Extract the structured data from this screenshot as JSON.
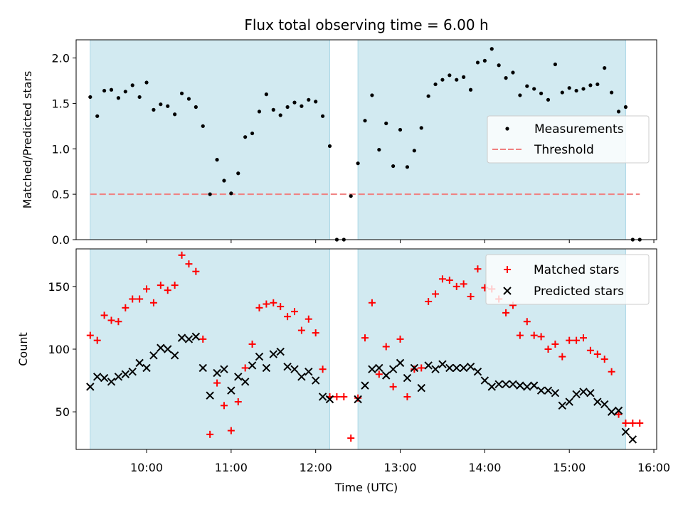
{
  "chart_data": [
    {
      "type": "scatter",
      "title": "Flux total observing time = 6.00 h",
      "ylabel": "Matched/Predicted stars",
      "ylim": [
        0,
        2.2
      ],
      "yticks": [
        0.0,
        0.5,
        1.0,
        1.5,
        2.0
      ],
      "ytick_labels": [
        "0.0",
        "0.5",
        "1.0",
        "1.5",
        "2.0"
      ],
      "legend": {
        "placement": "center-right",
        "entries": [
          "Measurements",
          "Threshold"
        ]
      },
      "shaded_ranges": [
        [
          "09:20",
          "12:10"
        ],
        [
          "12:30",
          "15:40"
        ]
      ],
      "threshold": {
        "name": "Threshold",
        "value": 0.5,
        "x_start": "09:20",
        "x_end": "15:50",
        "color": "#f08080"
      },
      "series": [
        {
          "name": "Measurements",
          "color": "#000000",
          "points": [
            [
              "09:20",
              1.57
            ],
            [
              "09:25",
              1.36
            ],
            [
              "09:30",
              1.64
            ],
            [
              "09:35",
              1.65
            ],
            [
              "09:40",
              1.56
            ],
            [
              "09:45",
              1.63
            ],
            [
              "09:50",
              1.7
            ],
            [
              "09:55",
              1.57
            ],
            [
              "10:00",
              1.73
            ],
            [
              "10:05",
              1.43
            ],
            [
              "10:10",
              1.49
            ],
            [
              "10:15",
              1.47
            ],
            [
              "10:20",
              1.38
            ],
            [
              "10:25",
              1.61
            ],
            [
              "10:30",
              1.55
            ],
            [
              "10:35",
              1.46
            ],
            [
              "10:40",
              1.25
            ],
            [
              "10:45",
              0.5
            ],
            [
              "10:50",
              0.88
            ],
            [
              "10:55",
              0.65
            ],
            [
              "11:00",
              0.51
            ],
            [
              "11:05",
              0.73
            ],
            [
              "11:10",
              1.13
            ],
            [
              "11:15",
              1.17
            ],
            [
              "11:20",
              1.41
            ],
            [
              "11:25",
              1.6
            ],
            [
              "11:30",
              1.43
            ],
            [
              "11:35",
              1.37
            ],
            [
              "11:40",
              1.46
            ],
            [
              "11:45",
              1.51
            ],
            [
              "11:50",
              1.47
            ],
            [
              "11:55",
              1.54
            ],
            [
              "12:00",
              1.52
            ],
            [
              "12:05",
              1.36
            ],
            [
              "12:10",
              1.03
            ],
            [
              "12:15",
              0.0
            ],
            [
              "12:20",
              0.0
            ],
            [
              "12:25",
              0.48
            ],
            [
              "12:30",
              0.84
            ],
            [
              "12:35",
              1.31
            ],
            [
              "12:40",
              1.59
            ],
            [
              "12:45",
              0.99
            ],
            [
              "12:50",
              1.28
            ],
            [
              "12:55",
              0.81
            ],
            [
              "13:00",
              1.21
            ],
            [
              "13:05",
              0.8
            ],
            [
              "13:10",
              0.98
            ],
            [
              "13:15",
              1.23
            ],
            [
              "13:20",
              1.58
            ],
            [
              "13:25",
              1.71
            ],
            [
              "13:30",
              1.76
            ],
            [
              "13:35",
              1.81
            ],
            [
              "13:40",
              1.76
            ],
            [
              "13:45",
              1.79
            ],
            [
              "13:50",
              1.65
            ],
            [
              "13:55",
              1.95
            ],
            [
              "14:00",
              1.97
            ],
            [
              "14:05",
              2.1
            ],
            [
              "14:10",
              1.92
            ],
            [
              "14:15",
              1.78
            ],
            [
              "14:20",
              1.84
            ],
            [
              "14:25",
              1.59
            ],
            [
              "14:30",
              1.69
            ],
            [
              "14:35",
              1.66
            ],
            [
              "14:40",
              1.61
            ],
            [
              "14:45",
              1.54
            ],
            [
              "14:50",
              1.93
            ],
            [
              "14:55",
              1.62
            ],
            [
              "15:00",
              1.67
            ],
            [
              "15:05",
              1.64
            ],
            [
              "15:10",
              1.66
            ],
            [
              "15:15",
              1.7
            ],
            [
              "15:20",
              1.71
            ],
            [
              "15:25",
              1.89
            ],
            [
              "15:30",
              1.62
            ],
            [
              "15:35",
              1.41
            ],
            [
              "15:40",
              1.46
            ],
            [
              "15:45",
              0.0
            ],
            [
              "15:50",
              0.0
            ]
          ]
        }
      ]
    },
    {
      "type": "scatter",
      "xlabel": "Time (UTC)",
      "ylabel": "Count",
      "xlim": [
        "09:10",
        "16:02"
      ],
      "xticks": [
        "10:00",
        "11:00",
        "12:00",
        "13:00",
        "14:00",
        "15:00",
        "16:00"
      ],
      "ylim": [
        20,
        180
      ],
      "yticks": [
        50,
        100,
        150
      ],
      "ytick_labels": [
        "50",
        "100",
        "150"
      ],
      "legend": {
        "placement": "top-right",
        "entries": [
          "Matched stars",
          "Predicted stars"
        ]
      },
      "shaded_ranges": [
        [
          "09:20",
          "12:10"
        ],
        [
          "12:30",
          "15:40"
        ]
      ],
      "series": [
        {
          "name": "Matched stars",
          "marker": "+",
          "color": "#ff0000",
          "points": [
            [
              "09:20",
              111
            ],
            [
              "09:25",
              107
            ],
            [
              "09:30",
              127
            ],
            [
              "09:35",
              123
            ],
            [
              "09:40",
              122
            ],
            [
              "09:45",
              133
            ],
            [
              "09:50",
              140
            ],
            [
              "09:55",
              140
            ],
            [
              "10:00",
              148
            ],
            [
              "10:05",
              137
            ],
            [
              "10:10",
              151
            ],
            [
              "10:15",
              147
            ],
            [
              "10:20",
              151
            ],
            [
              "10:25",
              175
            ],
            [
              "10:30",
              168
            ],
            [
              "10:35",
              162
            ],
            [
              "10:40",
              108
            ],
            [
              "10:45",
              32
            ],
            [
              "10:50",
              73
            ],
            [
              "10:55",
              55
            ],
            [
              "11:00",
              35
            ],
            [
              "11:05",
              58
            ],
            [
              "11:10",
              85
            ],
            [
              "11:15",
              104
            ],
            [
              "11:20",
              133
            ],
            [
              "11:25",
              136
            ],
            [
              "11:30",
              137
            ],
            [
              "11:35",
              134
            ],
            [
              "11:40",
              126
            ],
            [
              "11:45",
              130
            ],
            [
              "11:50",
              115
            ],
            [
              "11:55",
              124
            ],
            [
              "12:00",
              113
            ],
            [
              "12:05",
              84
            ],
            [
              "12:10",
              62
            ],
            [
              "12:15",
              62
            ],
            [
              "12:20",
              62
            ],
            [
              "12:25",
              29
            ],
            [
              "12:30",
              61
            ],
            [
              "12:35",
              109
            ],
            [
              "12:40",
              137
            ],
            [
              "12:45",
              80
            ],
            [
              "12:50",
              102
            ],
            [
              "12:55",
              70
            ],
            [
              "13:00",
              108
            ],
            [
              "13:05",
              62
            ],
            [
              "13:10",
              84
            ],
            [
              "13:15",
              85
            ],
            [
              "13:20",
              138
            ],
            [
              "13:25",
              144
            ],
            [
              "13:30",
              156
            ],
            [
              "13:35",
              155
            ],
            [
              "13:40",
              150
            ],
            [
              "13:45",
              152
            ],
            [
              "13:50",
              142
            ],
            [
              "13:55",
              164
            ],
            [
              "14:00",
              149
            ],
            [
              "14:05",
              148
            ],
            [
              "14:10",
              140
            ],
            [
              "14:15",
              129
            ],
            [
              "14:20",
              135
            ],
            [
              "14:25",
              111
            ],
            [
              "14:30",
              122
            ],
            [
              "14:35",
              111
            ],
            [
              "14:40",
              110
            ],
            [
              "14:45",
              100
            ],
            [
              "14:50",
              104
            ],
            [
              "14:55",
              94
            ],
            [
              "15:00",
              107
            ],
            [
              "15:05",
              107
            ],
            [
              "15:10",
              109
            ],
            [
              "15:15",
              99
            ],
            [
              "15:20",
              96
            ],
            [
              "15:25",
              92
            ],
            [
              "15:30",
              82
            ],
            [
              "15:35",
              48
            ],
            [
              "15:40",
              41
            ],
            [
              "15:45",
              41
            ],
            [
              "15:50",
              41
            ]
          ]
        },
        {
          "name": "Predicted stars",
          "marker": "x",
          "color": "#000000",
          "points": [
            [
              "09:20",
              70
            ],
            [
              "09:25",
              78
            ],
            [
              "09:30",
              77
            ],
            [
              "09:35",
              74
            ],
            [
              "09:40",
              78
            ],
            [
              "09:45",
              80
            ],
            [
              "09:50",
              82
            ],
            [
              "09:55",
              89
            ],
            [
              "10:00",
              85
            ],
            [
              "10:05",
              95
            ],
            [
              "10:10",
              101
            ],
            [
              "10:15",
              100
            ],
            [
              "10:20",
              95
            ],
            [
              "10:25",
              109
            ],
            [
              "10:30",
              108
            ],
            [
              "10:35",
              110
            ],
            [
              "10:40",
              85
            ],
            [
              "10:45",
              63
            ],
            [
              "10:50",
              81
            ],
            [
              "10:55",
              84
            ],
            [
              "11:00",
              67
            ],
            [
              "11:05",
              78
            ],
            [
              "11:10",
              74
            ],
            [
              "11:15",
              87
            ],
            [
              "11:20",
              94
            ],
            [
              "11:25",
              85
            ],
            [
              "11:30",
              96
            ],
            [
              "11:35",
              98
            ],
            [
              "11:40",
              86
            ],
            [
              "11:45",
              84
            ],
            [
              "11:50",
              78
            ],
            [
              "11:55",
              82
            ],
            [
              "12:00",
              75
            ],
            [
              "12:05",
              62
            ],
            [
              "12:10",
              60
            ],
            [
              "12:30",
              60
            ],
            [
              "12:35",
              71
            ],
            [
              "12:40",
              84
            ],
            [
              "12:45",
              85
            ],
            [
              "12:50",
              79
            ],
            [
              "12:55",
              84
            ],
            [
              "13:00",
              89
            ],
            [
              "13:05",
              77
            ],
            [
              "13:10",
              85
            ],
            [
              "13:15",
              69
            ],
            [
              "13:20",
              87
            ],
            [
              "13:25",
              84
            ],
            [
              "13:30",
              88
            ],
            [
              "13:35",
              85
            ],
            [
              "13:40",
              85
            ],
            [
              "13:45",
              85
            ],
            [
              "13:50",
              86
            ],
            [
              "13:55",
              82
            ],
            [
              "14:00",
              75
            ],
            [
              "14:05",
              70
            ],
            [
              "14:10",
              72
            ],
            [
              "14:15",
              72
            ],
            [
              "14:20",
              72
            ],
            [
              "14:25",
              71
            ],
            [
              "14:30",
              70
            ],
            [
              "14:35",
              71
            ],
            [
              "14:40",
              67
            ],
            [
              "14:45",
              67
            ],
            [
              "14:50",
              65
            ],
            [
              "14:55",
              55
            ],
            [
              "15:00",
              58
            ],
            [
              "15:05",
              64
            ],
            [
              "15:10",
              66
            ],
            [
              "15:15",
              65
            ],
            [
              "15:20",
              58
            ],
            [
              "15:25",
              56
            ],
            [
              "15:30",
              50
            ],
            [
              "15:35",
              51
            ],
            [
              "15:40",
              34
            ],
            [
              "15:45",
              28
            ]
          ]
        }
      ]
    }
  ],
  "colors": {
    "span_fill": "#add8e6",
    "matched": "#ff0000",
    "predicted": "#000000",
    "threshold": "#f08080"
  }
}
